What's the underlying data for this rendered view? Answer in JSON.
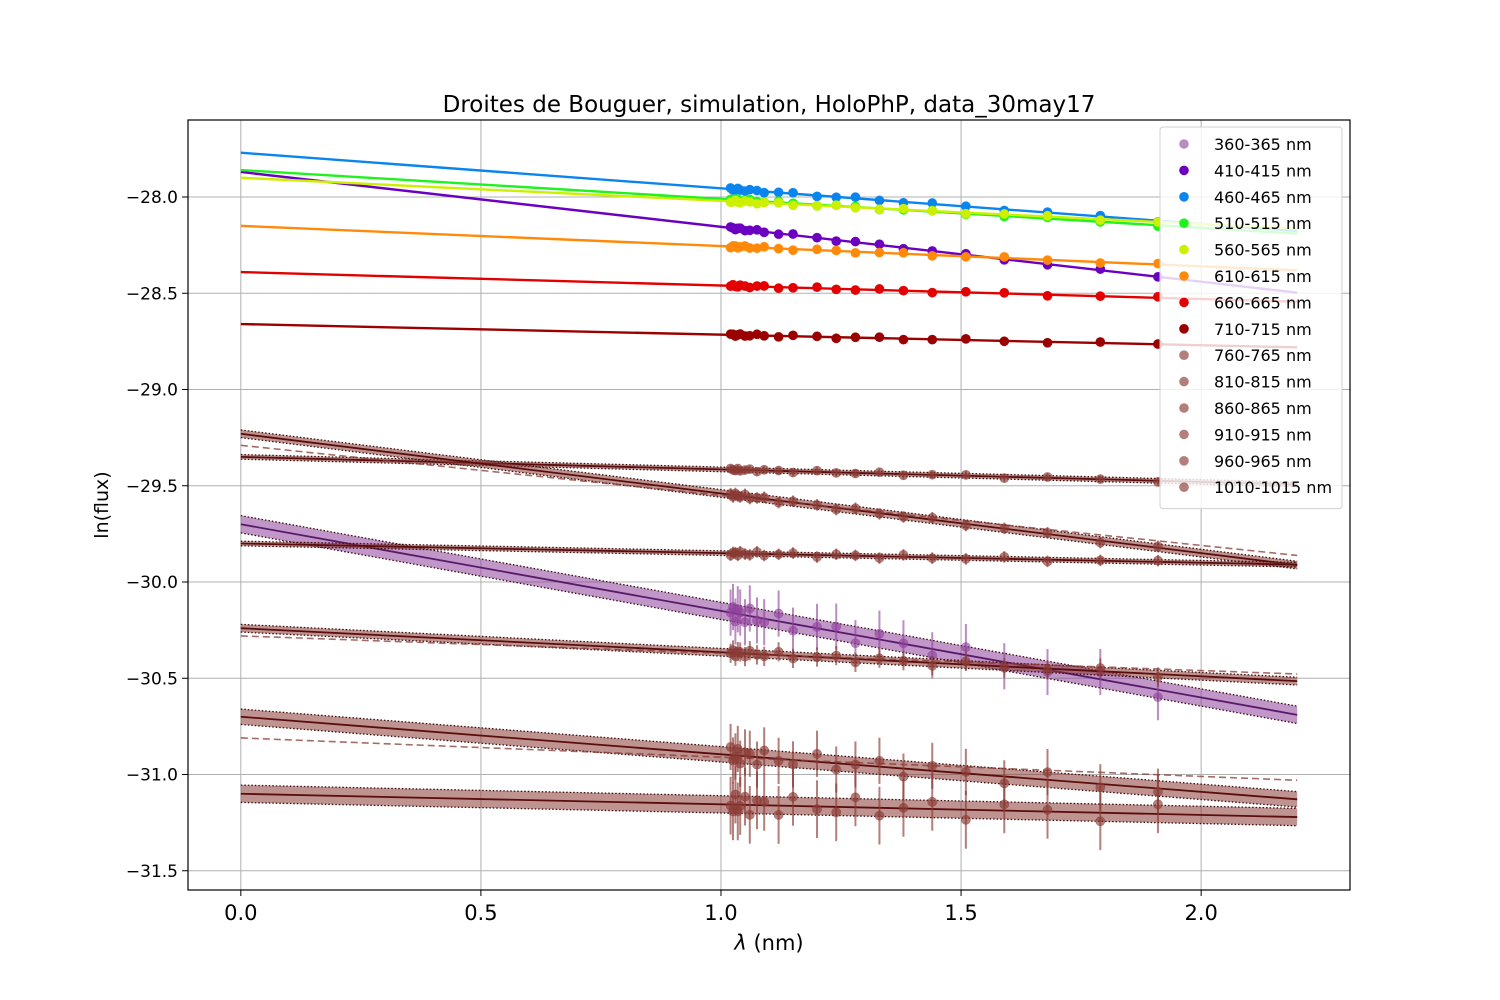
{
  "chart_data": {
    "type": "scatter",
    "title": "Droites de Bouguer, simulation, HoloPhP, data_30may17",
    "xlabel_var": "λ",
    "xlabel_unit": " (nm)",
    "ylabel": "ln(flux)",
    "xlim": [
      -0.11,
      2.31
    ],
    "ylim": [
      -31.6,
      -27.6
    ],
    "xticks": [
      0.0,
      0.5,
      1.0,
      1.5,
      2.0
    ],
    "xtick_labels": [
      "0.0",
      "0.5",
      "1.0",
      "1.5",
      "2.0"
    ],
    "yticks": [
      -28.0,
      -28.5,
      -29.0,
      -29.5,
      -30.0,
      -30.5,
      -31.0,
      -31.5
    ],
    "ytick_labels": [
      "−28.0",
      "−28.5",
      "−29.0",
      "−29.5",
      "−30.0",
      "−30.5",
      "−31.0",
      "−31.5"
    ],
    "grid": true,
    "legend_position": "top-right",
    "x": [
      1.02,
      1.025,
      1.03,
      1.035,
      1.04,
      1.05,
      1.06,
      1.075,
      1.09,
      1.12,
      1.15,
      1.2,
      1.24,
      1.28,
      1.33,
      1.38,
      1.44,
      1.51,
      1.59,
      1.68,
      1.79,
      1.91
    ],
    "series": [
      {
        "name": "360-365 nm",
        "color": "#8e3f9a",
        "alpha": 0.6,
        "intercept": -29.7,
        "slope": -0.45,
        "err": 0.12,
        "band": 0.045,
        "dashed": null
      },
      {
        "name": "410-415 nm",
        "color": "#6b00c0",
        "alpha": 1.0,
        "intercept": -27.87,
        "slope": -0.285,
        "err": 0,
        "band": 0,
        "dashed": null
      },
      {
        "name": "460-465 nm",
        "color": "#0a85ee",
        "alpha": 1.0,
        "intercept": -27.77,
        "slope": -0.185,
        "err": 0,
        "band": 0,
        "dashed": null
      },
      {
        "name": "510-515 nm",
        "color": "#1ef31e",
        "alpha": 1.0,
        "intercept": -27.86,
        "slope": -0.15,
        "err": 0,
        "band": 0,
        "dashed": null
      },
      {
        "name": "560-565 nm",
        "color": "#ccf000",
        "alpha": 1.0,
        "intercept": -27.9,
        "slope": -0.12,
        "err": 0,
        "band": 0,
        "dashed": null
      },
      {
        "name": "610-615 nm",
        "color": "#ff8a0a",
        "alpha": 1.0,
        "intercept": -28.15,
        "slope": -0.105,
        "err": 0,
        "band": 0,
        "dashed": null
      },
      {
        "name": "660-665 nm",
        "color": "#e20000",
        "alpha": 1.0,
        "intercept": -28.39,
        "slope": -0.07,
        "err": 0,
        "band": 0,
        "dashed": null
      },
      {
        "name": "710-715 nm",
        "color": "#9a0000",
        "alpha": 1.0,
        "intercept": -28.66,
        "slope": -0.055,
        "err": 0,
        "band": 0,
        "dashed": null
      },
      {
        "name": "760-765 nm",
        "color": "#8a3a34",
        "alpha": 0.65,
        "intercept": -29.35,
        "slope": -0.065,
        "err": 0.02,
        "band": 0.012,
        "dashed": null
      },
      {
        "name": "810-815 nm",
        "color": "#8a3a34",
        "alpha": 0.65,
        "intercept": -29.23,
        "slope": -0.31,
        "err": 0.03,
        "band": 0.02,
        "dashed": [
          -29.29,
          -0.26
        ]
      },
      {
        "name": "860-865 nm",
        "color": "#8a3a34",
        "alpha": 0.65,
        "intercept": -29.8,
        "slope": -0.05,
        "err": 0.03,
        "band": 0.012,
        "dashed": null
      },
      {
        "name": "910-915 nm",
        "color": "#8a3a34",
        "alpha": 0.65,
        "intercept": -30.24,
        "slope": -0.125,
        "err": 0.05,
        "band": 0.02,
        "dashed": [
          -30.28,
          -0.09
        ]
      },
      {
        "name": "960-965 nm",
        "color": "#8a3a34",
        "alpha": 0.65,
        "intercept": -30.7,
        "slope": -0.195,
        "err": 0.12,
        "band": 0.04,
        "dashed": [
          -30.81,
          -0.1
        ]
      },
      {
        "name": "1010-1015 nm",
        "color": "#8a3a34",
        "alpha": 0.65,
        "intercept": -31.1,
        "slope": -0.055,
        "err": 0.15,
        "band": 0.045,
        "dashed": null
      }
    ]
  }
}
